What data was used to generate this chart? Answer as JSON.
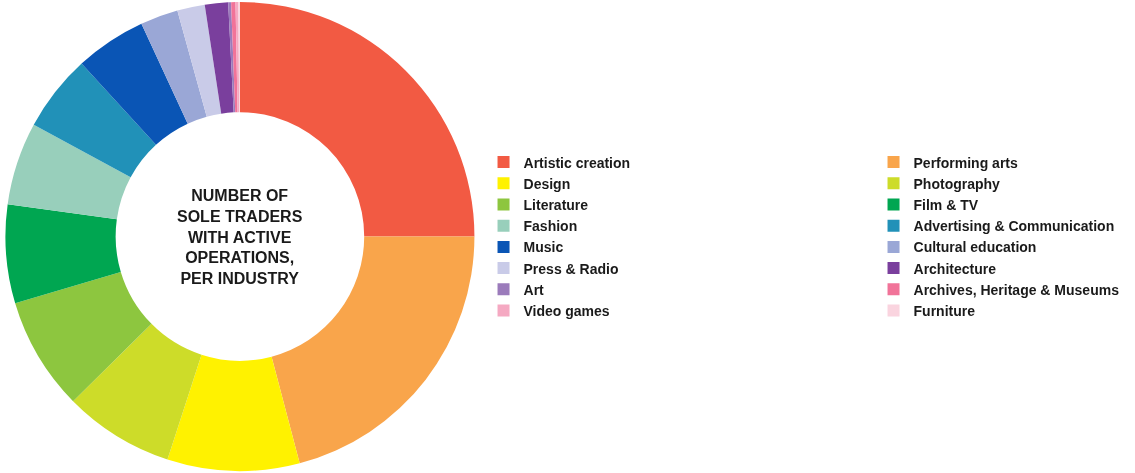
{
  "chart_data": {
    "type": "donut",
    "title": "NUMBER OF\nSOLE TRADERS\nWITH ACTIVE\nOPERATIONS,\nPER INDUSTRY",
    "categories": [
      "Artistic creation",
      "Performing arts",
      "Design",
      "Photography",
      "Literature",
      "Film & TV",
      "Fashion",
      "Advertising & Communication",
      "Music",
      "Cultural education",
      "Press & Radio",
      "Architecture",
      "Art",
      "Archives, Heritage & Museums",
      "Video games",
      "Furniture"
    ],
    "values": [
      25.0,
      20.9,
      9.1,
      7.6,
      7.8,
      6.8,
      5.7,
      5.3,
      4.9,
      2.6,
      1.9,
      1.6,
      0.2,
      0.3,
      0.2,
      0.1
    ],
    "colors": [
      "#f25a43",
      "#f9a54b",
      "#fff200",
      "#cddc29",
      "#8dc63f",
      "#00a651",
      "#98cfbb",
      "#2191b8",
      "#0a55b5",
      "#9aa7d6",
      "#c9cbe8",
      "#7a3f9d",
      "#9b7bbb",
      "#f17399",
      "#f5a9c2",
      "#fad4df"
    ],
    "legend": "right"
  }
}
